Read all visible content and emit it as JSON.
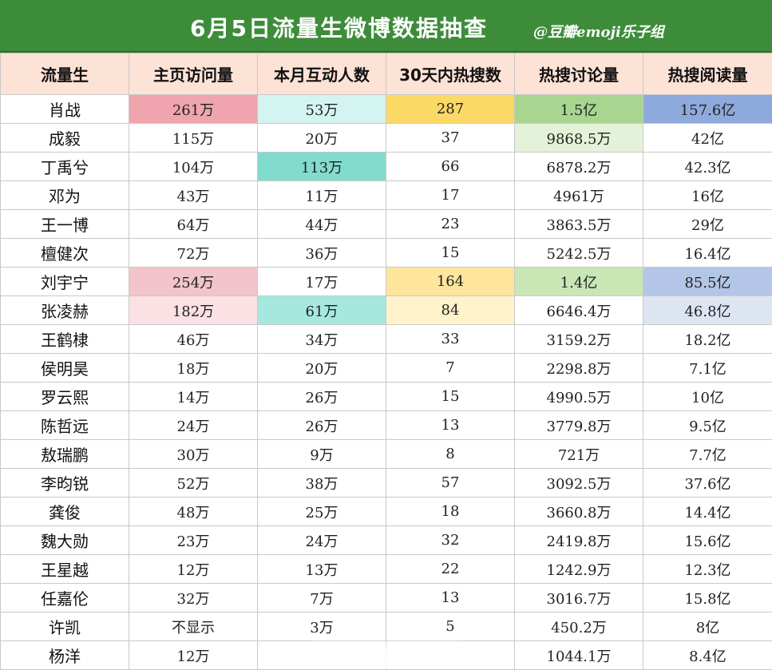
{
  "header": {
    "title": "6月5日流量生微博数据抽查",
    "credit": "@豆瓣emoji乐子组"
  },
  "columns": [
    "流量生",
    "主页访问量",
    "本月互动人数",
    "30天内热搜数",
    "热搜讨论量",
    "热搜阅读量"
  ],
  "rows": [
    {
      "name": "肖战",
      "visits": "261万",
      "interact": "53万",
      "hotsearch": "287",
      "discuss": "1.5亿",
      "reads": "157.6亿"
    },
    {
      "name": "成毅",
      "visits": "115万",
      "interact": "20万",
      "hotsearch": "37",
      "discuss": "9868.5万",
      "reads": "42亿"
    },
    {
      "name": "丁禹兮",
      "visits": "104万",
      "interact": "113万",
      "hotsearch": "66",
      "discuss": "6878.2万",
      "reads": "42.3亿"
    },
    {
      "name": "邓为",
      "visits": "43万",
      "interact": "11万",
      "hotsearch": "17",
      "discuss": "4961万",
      "reads": "16亿"
    },
    {
      "name": "王一博",
      "visits": "64万",
      "interact": "44万",
      "hotsearch": "23",
      "discuss": "3863.5万",
      "reads": "29亿"
    },
    {
      "name": "檀健次",
      "visits": "72万",
      "interact": "36万",
      "hotsearch": "15",
      "discuss": "5242.5万",
      "reads": "16.4亿"
    },
    {
      "name": "刘宇宁",
      "visits": "254万",
      "interact": "17万",
      "hotsearch": "164",
      "discuss": "1.4亿",
      "reads": "85.5亿"
    },
    {
      "name": "张凌赫",
      "visits": "182万",
      "interact": "61万",
      "hotsearch": "84",
      "discuss": "6646.4万",
      "reads": "46.8亿"
    },
    {
      "name": "王鹤棣",
      "visits": "46万",
      "interact": "34万",
      "hotsearch": "33",
      "discuss": "3159.2万",
      "reads": "18.2亿"
    },
    {
      "name": "侯明昊",
      "visits": "18万",
      "interact": "20万",
      "hotsearch": "7",
      "discuss": "2298.8万",
      "reads": "7.1亿"
    },
    {
      "name": "罗云熙",
      "visits": "14万",
      "interact": "26万",
      "hotsearch": "15",
      "discuss": "4990.5万",
      "reads": "10亿"
    },
    {
      "name": "陈哲远",
      "visits": "24万",
      "interact": "26万",
      "hotsearch": "13",
      "discuss": "3779.8万",
      "reads": "9.5亿"
    },
    {
      "name": "敖瑞鹏",
      "visits": "30万",
      "interact": "9万",
      "hotsearch": "8",
      "discuss": "721万",
      "reads": "7.7亿"
    },
    {
      "name": "李昀锐",
      "visits": "52万",
      "interact": "38万",
      "hotsearch": "57",
      "discuss": "3092.5万",
      "reads": "37.6亿"
    },
    {
      "name": "龚俊",
      "visits": "48万",
      "interact": "25万",
      "hotsearch": "18",
      "discuss": "3660.8万",
      "reads": "14.4亿"
    },
    {
      "name": "魏大勋",
      "visits": "23万",
      "interact": "24万",
      "hotsearch": "32",
      "discuss": "2419.8万",
      "reads": "15.6亿"
    },
    {
      "name": "王星越",
      "visits": "12万",
      "interact": "13万",
      "hotsearch": "22",
      "discuss": "1242.9万",
      "reads": "12.3亿"
    },
    {
      "name": "任嘉伦",
      "visits": "32万",
      "interact": "7万",
      "hotsearch": "13",
      "discuss": "3016.7万",
      "reads": "15.8亿"
    },
    {
      "name": "许凯",
      "visits": "不显示",
      "interact": "3万",
      "hotsearch": "5",
      "discuss": "450.2万",
      "reads": "8亿"
    },
    {
      "name": "杨洋",
      "visits": "12万",
      "interact": "",
      "hotsearch": "",
      "discuss": "1044.1万",
      "reads": "8.4亿"
    }
  ],
  "highlights": [
    {
      "row": 0,
      "col": "visits",
      "color": "#f0a5ae"
    },
    {
      "row": 0,
      "col": "interact",
      "color": "#d4f4f1"
    },
    {
      "row": 0,
      "col": "hotsearch",
      "color": "#fcd966"
    },
    {
      "row": 0,
      "col": "discuss",
      "color": "#a8d590"
    },
    {
      "row": 0,
      "col": "reads",
      "color": "#8ea9db"
    },
    {
      "row": 1,
      "col": "discuss",
      "color": "#e3f2d8"
    },
    {
      "row": 2,
      "col": "interact",
      "color": "#82dccd"
    },
    {
      "row": 6,
      "col": "visits",
      "color": "#f3c4cb"
    },
    {
      "row": 6,
      "col": "hotsearch",
      "color": "#fde69b"
    },
    {
      "row": 6,
      "col": "discuss",
      "color": "#c9e6b5"
    },
    {
      "row": 6,
      "col": "reads",
      "color": "#b4c6e7"
    },
    {
      "row": 7,
      "col": "visits",
      "color": "#fbe0e4"
    },
    {
      "row": 7,
      "col": "interact",
      "color": "#a6e8de"
    },
    {
      "row": 7,
      "col": "hotsearch",
      "color": "#fef3cb"
    },
    {
      "row": 7,
      "col": "reads",
      "color": "#dde5f3"
    }
  ],
  "colors": {
    "banner": "#3d8c3a",
    "header_row": "#fde2d6",
    "grid": "#c9c9c9"
  }
}
